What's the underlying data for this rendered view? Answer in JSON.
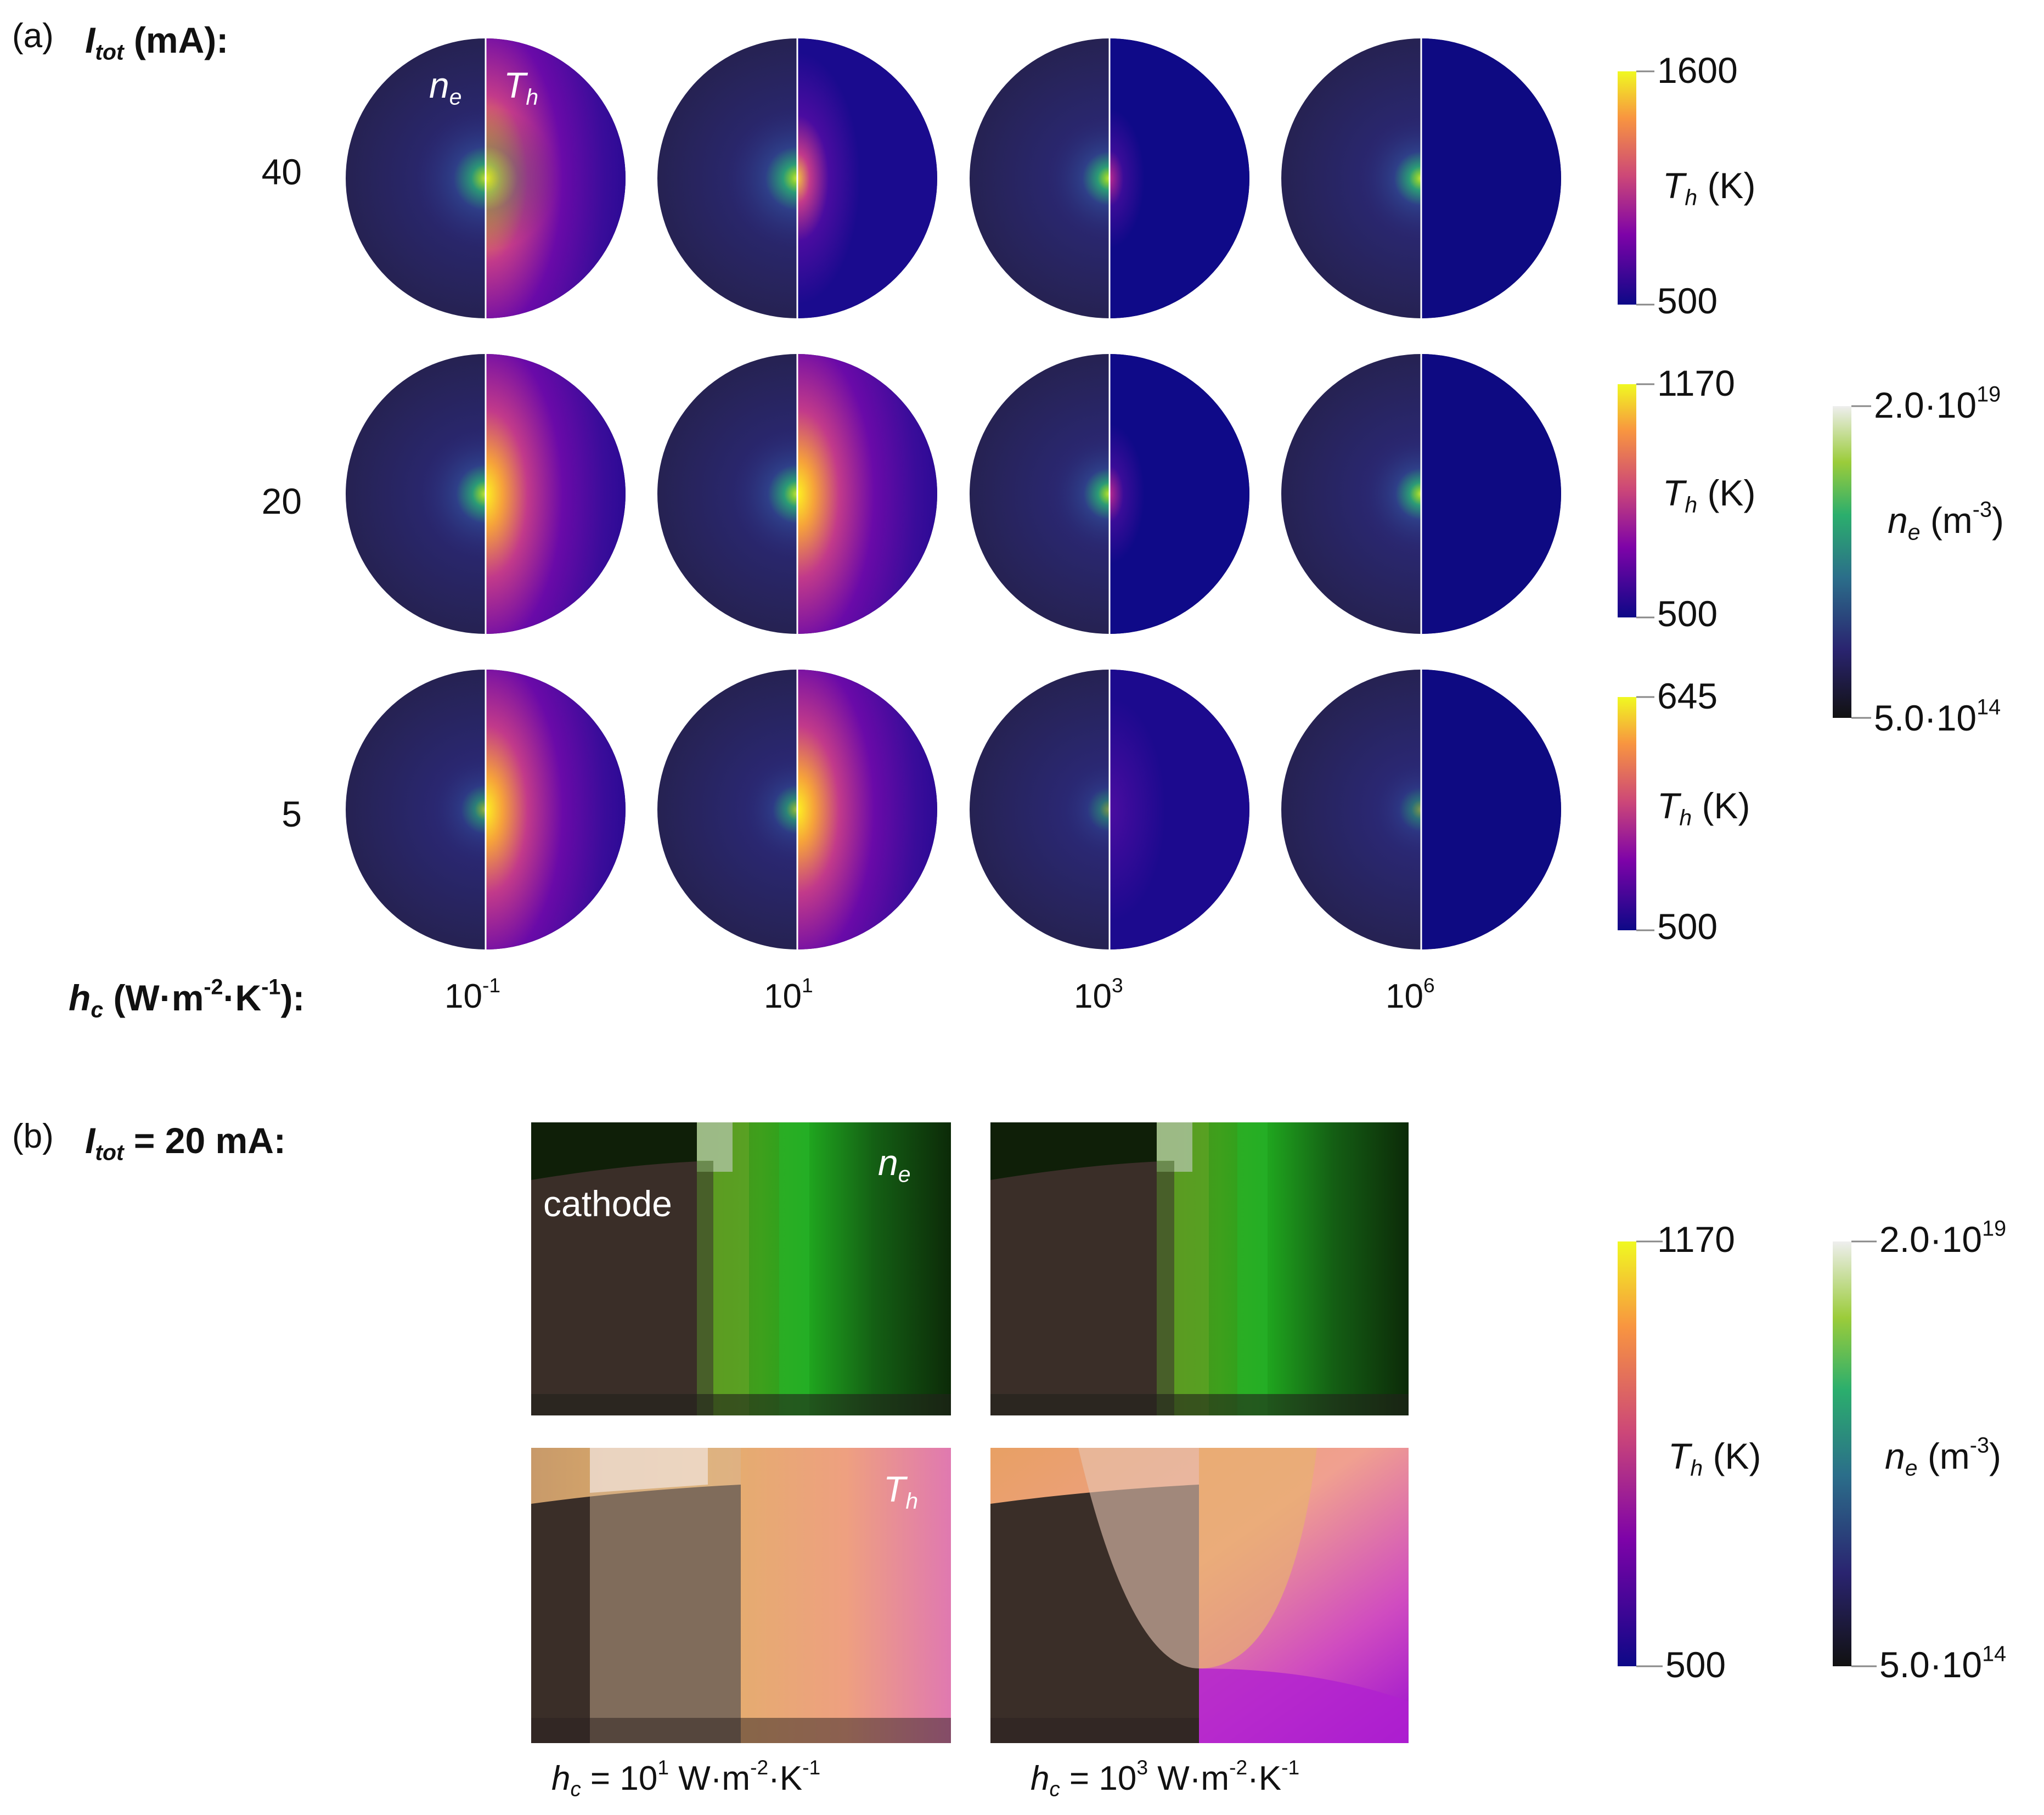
{
  "panel_a": {
    "letter": "(a)",
    "itot_symbol": "I",
    "itot_sub": "tot",
    "itot_unit": "(mA):",
    "inset_ne": "n",
    "inset_ne_sub": "e",
    "inset_th": "T",
    "inset_th_sub": "h",
    "rows": [
      {
        "current": "40",
        "th_max": "1600",
        "th_min": "500"
      },
      {
        "current": "20",
        "th_max": "1170",
        "th_min": "500"
      },
      {
        "current": "5",
        "th_max": "645",
        "th_min": "500"
      }
    ],
    "hc_symbol": "h",
    "hc_sub": "c",
    "hc_unit_main": "(W·m",
    "hc_exp1": "-2",
    "hc_mid": "·K",
    "hc_exp2": "-1",
    "hc_end": "):",
    "hc_values": [
      {
        "base": "10",
        "exp": "-1"
      },
      {
        "base": "10",
        "exp": "1"
      },
      {
        "base": "10",
        "exp": "3"
      },
      {
        "base": "10",
        "exp": "6"
      }
    ],
    "th_cbar_symbol": "T",
    "th_cbar_sub": "h",
    "th_cbar_unit": "(K)",
    "ne_cbar": {
      "max_mant": "2.0·10",
      "max_exp": "19",
      "min_mant": "5.0·10",
      "min_exp": "14",
      "symbol": "n",
      "sub": "e",
      "unit": "(m",
      "unit_exp": "-3",
      "unit_end": ")"
    }
  },
  "panel_b": {
    "letter": "(b)",
    "itot_symbol": "I",
    "itot_sub": "tot",
    "itot_value": "= 20 mA:",
    "cathode_label": "cathode",
    "ne_label": "n",
    "ne_sub": "e",
    "th_label": "T",
    "th_sub": "h",
    "captions": [
      {
        "sym": "h",
        "sub": "c",
        "eq": " = 10",
        "exp": "1",
        "unit": " W·m",
        "exp2": "-2",
        "unit2": "·K",
        "exp3": "-1"
      },
      {
        "sym": "h",
        "sub": "c",
        "eq": " = 10",
        "exp": "3",
        "unit": " W·m",
        "exp2": "-2",
        "unit2": "·K",
        "exp3": "-1"
      }
    ],
    "th_cbar": {
      "max": "1170",
      "min": "500",
      "symbol": "T",
      "sub": "h",
      "unit": "(K)"
    },
    "ne_cbar": {
      "max_mant": "2.0·10",
      "max_exp": "19",
      "min_mant": "5.0·10",
      "min_exp": "14",
      "symbol": "n",
      "sub": "e",
      "unit": "(m",
      "unit_exp": "-3",
      "unit_end": ")"
    }
  },
  "colors": {
    "plasma_low": "#0d0887",
    "plasma_mid": "#cc4778",
    "plasma_high": "#f0f921",
    "ne_low": "#1a1a1a",
    "ne_mid": "#2bae6d",
    "ne_high": "#eeeeee",
    "cathode": "#3a2e28"
  }
}
